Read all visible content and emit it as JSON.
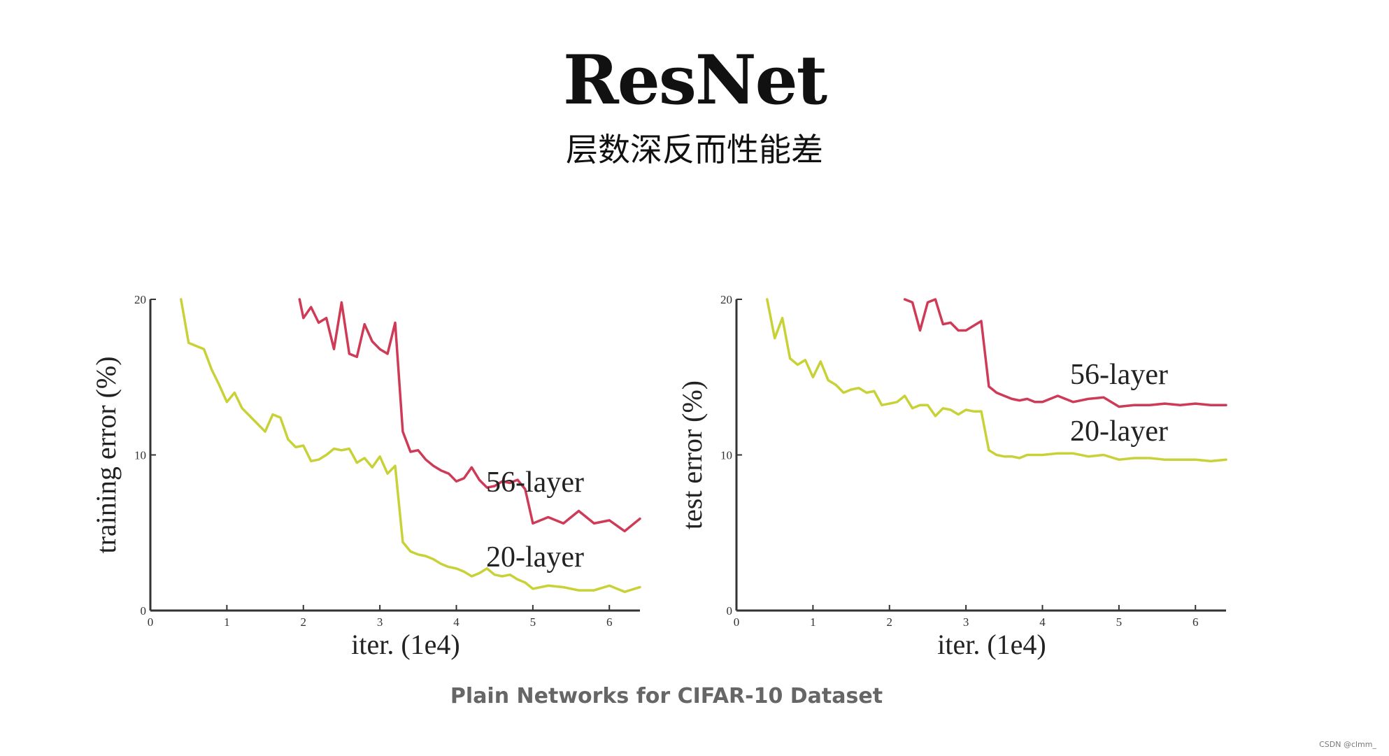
{
  "header": {
    "title": "ResNet",
    "subtitle": "层数深反而性能差"
  },
  "caption": "Plain Networks for CIFAR-10 Dataset",
  "watermark": "CSDN @clmm_",
  "colors": {
    "layer56": "#cf3a57",
    "layer20": "#c8d236",
    "axis": "#333333"
  },
  "chart_data": [
    {
      "type": "line",
      "xlabel": "iter. (1e4)",
      "ylabel": "training error (%)",
      "xlim": [
        0,
        6.4
      ],
      "ylim": [
        0,
        20
      ],
      "xticks": [
        0,
        1,
        2,
        3,
        4,
        5,
        6
      ],
      "yticks": [
        0,
        10,
        20
      ],
      "grid": false,
      "series": [
        {
          "name": "56-layer",
          "color": "#cf3a57",
          "x": [
            1.95,
            2.0,
            2.1,
            2.2,
            2.3,
            2.4,
            2.5,
            2.6,
            2.7,
            2.8,
            2.9,
            3.0,
            3.1,
            3.2,
            3.3,
            3.4,
            3.5,
            3.6,
            3.7,
            3.8,
            3.9,
            4.0,
            4.1,
            4.2,
            4.3,
            4.4,
            4.5,
            4.6,
            4.7,
            4.8,
            4.9,
            5.0,
            5.2,
            5.4,
            5.6,
            5.8,
            6.0,
            6.2,
            6.4
          ],
          "y": [
            20.0,
            18.8,
            19.5,
            18.5,
            18.8,
            16.8,
            19.8,
            16.5,
            16.3,
            18.4,
            17.3,
            16.8,
            16.5,
            18.5,
            11.5,
            10.2,
            10.3,
            9.7,
            9.3,
            9.0,
            8.8,
            8.3,
            8.5,
            9.2,
            8.4,
            7.9,
            8.0,
            8.3,
            8.2,
            8.4,
            7.8,
            5.6,
            6.0,
            5.6,
            6.4,
            5.6,
            5.8,
            5.1,
            5.9
          ]
        },
        {
          "name": "20-layer",
          "color": "#c8d236",
          "x": [
            0.4,
            0.5,
            0.6,
            0.7,
            0.8,
            0.9,
            1.0,
            1.1,
            1.2,
            1.3,
            1.4,
            1.5,
            1.6,
            1.7,
            1.8,
            1.9,
            2.0,
            2.1,
            2.2,
            2.3,
            2.4,
            2.5,
            2.6,
            2.7,
            2.8,
            2.9,
            3.0,
            3.1,
            3.2,
            3.3,
            3.4,
            3.5,
            3.6,
            3.7,
            3.8,
            3.9,
            4.0,
            4.1,
            4.2,
            4.3,
            4.4,
            4.5,
            4.6,
            4.7,
            4.8,
            4.9,
            5.0,
            5.2,
            5.4,
            5.6,
            5.8,
            6.0,
            6.2,
            6.4
          ],
          "y": [
            20.0,
            17.2,
            17.0,
            16.8,
            15.5,
            14.5,
            13.4,
            14.0,
            13.0,
            12.5,
            12.0,
            11.5,
            12.6,
            12.4,
            11.0,
            10.5,
            10.6,
            9.6,
            9.7,
            10.0,
            10.4,
            10.3,
            10.4,
            9.5,
            9.8,
            9.2,
            9.9,
            8.8,
            9.3,
            4.4,
            3.8,
            3.6,
            3.5,
            3.3,
            3.0,
            2.8,
            2.7,
            2.5,
            2.2,
            2.4,
            2.7,
            2.3,
            2.2,
            2.3,
            2.0,
            1.8,
            1.4,
            1.6,
            1.5,
            1.3,
            1.3,
            1.6,
            1.2,
            1.5
          ]
        }
      ]
    },
    {
      "type": "line",
      "xlabel": "iter. (1e4)",
      "ylabel": "test error (%)",
      "xlim": [
        0,
        6.4
      ],
      "ylim": [
        0,
        20
      ],
      "xticks": [
        0,
        1,
        2,
        3,
        4,
        5,
        6
      ],
      "yticks": [
        0,
        10,
        20
      ],
      "grid": false,
      "series": [
        {
          "name": "56-layer",
          "color": "#cf3a57",
          "x": [
            2.2,
            2.3,
            2.4,
            2.5,
            2.6,
            2.7,
            2.8,
            2.9,
            3.0,
            3.1,
            3.2,
            3.3,
            3.4,
            3.5,
            3.6,
            3.7,
            3.8,
            3.9,
            4.0,
            4.2,
            4.4,
            4.6,
            4.8,
            5.0,
            5.2,
            5.4,
            5.6,
            5.8,
            6.0,
            6.2,
            6.4
          ],
          "y": [
            20.0,
            19.8,
            18.0,
            19.8,
            20.0,
            18.4,
            18.5,
            18.0,
            18.0,
            18.3,
            18.6,
            14.4,
            14.0,
            13.8,
            13.6,
            13.5,
            13.6,
            13.4,
            13.4,
            13.8,
            13.4,
            13.6,
            13.7,
            13.1,
            13.2,
            13.2,
            13.3,
            13.2,
            13.3,
            13.2,
            13.2
          ]
        },
        {
          "name": "20-layer",
          "color": "#c8d236",
          "x": [
            0.4,
            0.5,
            0.6,
            0.7,
            0.8,
            0.9,
            1.0,
            1.1,
            1.2,
            1.3,
            1.4,
            1.5,
            1.6,
            1.7,
            1.8,
            1.9,
            2.0,
            2.1,
            2.2,
            2.3,
            2.4,
            2.5,
            2.6,
            2.7,
            2.8,
            2.9,
            3.0,
            3.1,
            3.2,
            3.3,
            3.4,
            3.5,
            3.6,
            3.7,
            3.8,
            3.9,
            4.0,
            4.2,
            4.4,
            4.6,
            4.8,
            5.0,
            5.2,
            5.4,
            5.6,
            5.8,
            6.0,
            6.2,
            6.4
          ],
          "y": [
            20.0,
            17.5,
            18.8,
            16.2,
            15.8,
            16.1,
            15.0,
            16.0,
            14.8,
            14.5,
            14.0,
            14.2,
            14.3,
            14.0,
            14.1,
            13.2,
            13.3,
            13.4,
            13.8,
            13.0,
            13.2,
            13.2,
            12.5,
            13.0,
            12.9,
            12.6,
            12.9,
            12.8,
            12.8,
            10.3,
            10.0,
            9.9,
            9.9,
            9.8,
            10.0,
            10.0,
            10.0,
            10.1,
            10.1,
            9.9,
            10.0,
            9.7,
            9.8,
            9.8,
            9.7,
            9.7,
            9.7,
            9.6,
            9.7
          ]
        }
      ]
    }
  ]
}
